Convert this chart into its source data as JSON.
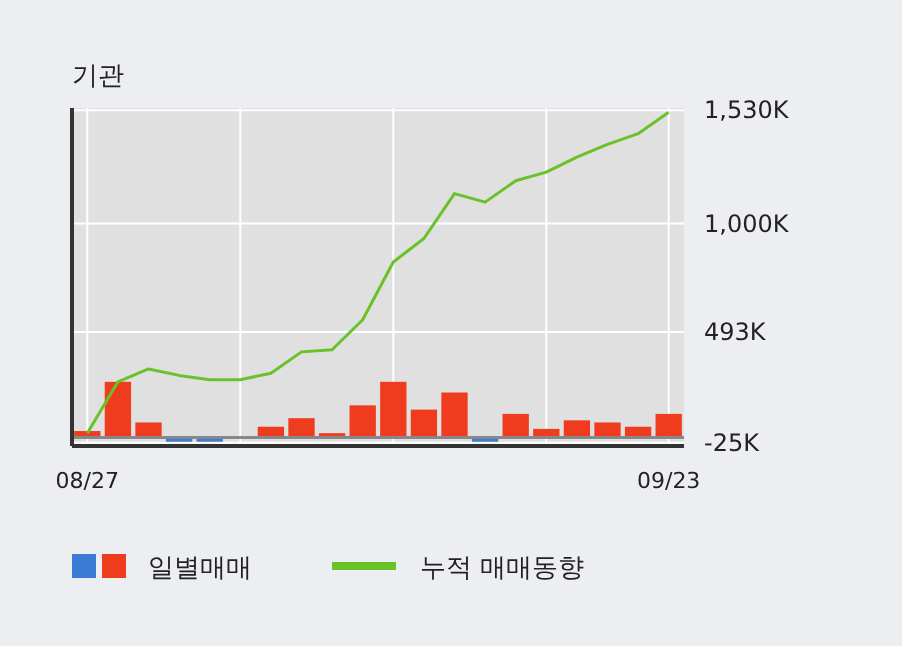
{
  "chart_data": {
    "type": "bar",
    "title": "기관",
    "categories": [
      "08/27",
      null,
      null,
      null,
      null,
      null,
      null,
      null,
      null,
      null,
      null,
      null,
      null,
      null,
      null,
      null,
      null,
      null,
      null,
      "09/23"
    ],
    "series": [
      {
        "name": "일별매매",
        "colors": [
          "#f03c1e",
          "#f03c1e",
          "#f03c1e",
          "#3a7bd5",
          "#3a7bd5",
          "#f03c1e",
          "#f03c1e",
          "#f03c1e",
          "#f03c1e",
          "#f03c1e",
          "#f03c1e",
          "#f03c1e",
          "#f03c1e",
          "#3a7bd5",
          "#f03c1e",
          "#f03c1e",
          "#f03c1e",
          "#f03c1e",
          "#f03c1e",
          "#f03c1e"
        ],
        "values": [
          30,
          260,
          70,
          -20,
          -20,
          0,
          50,
          90,
          20,
          150,
          260,
          130,
          210,
          -20,
          110,
          40,
          80,
          70,
          50,
          110
        ]
      },
      {
        "name": "누적 매매동향",
        "type": "line",
        "color": "#6ac12a",
        "values": [
          20,
          260,
          320,
          290,
          270,
          270,
          300,
          400,
          410,
          550,
          820,
          930,
          1140,
          1100,
          1200,
          1240,
          1310,
          1370,
          1420,
          1520
        ]
      }
    ],
    "ylim": [
      -40,
      1540
    ],
    "yticks": [
      {
        "value": -25,
        "label": "-25K"
      },
      {
        "value": 493,
        "label": "493K"
      },
      {
        "value": 1000,
        "label": "1,000K"
      },
      {
        "value": 1530,
        "label": "1,530K"
      }
    ],
    "grid": true,
    "legend": "bottom"
  }
}
